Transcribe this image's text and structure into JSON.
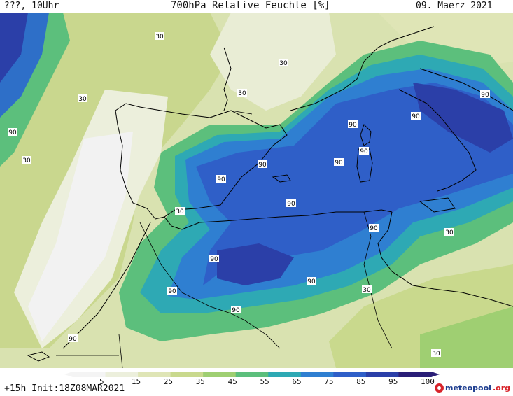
{
  "header": {
    "left": "???, 10Uhr",
    "title": "700hPa Relative Feuchte [%]",
    "date": "09. Maerz 2021"
  },
  "footer": {
    "run": "+15h Init:18Z08MAR2021",
    "logo_main": "meteopool",
    "logo_suffix": ".org"
  },
  "colorbar": {
    "ticks": [
      "5",
      "15",
      "25",
      "35",
      "45",
      "55",
      "65",
      "75",
      "85",
      "95",
      "100"
    ],
    "colors": [
      "#f4f4f4",
      "#ecefdc",
      "#dfe5b6",
      "#c9d98d",
      "#9fcf72",
      "#5cbf7c",
      "#2ea9b4",
      "#2f7fd1",
      "#2f5fc8",
      "#2b3fa8",
      "#2a1e77"
    ]
  },
  "contour_labels": [
    "30",
    "30",
    "30",
    "30",
    "30",
    "30",
    "90",
    "90",
    "90",
    "90",
    "90",
    "90",
    "90",
    "90",
    "90",
    "90",
    "90",
    "90",
    "90",
    "90",
    "90",
    "30",
    "30",
    "30"
  ]
}
